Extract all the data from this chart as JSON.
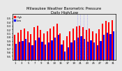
{
  "title": "Milwaukee Weather Barometric Pressure",
  "subtitle": "Daily High/Low",
  "background_color": "#e8e8e8",
  "plot_bg_color": "#e8e8e8",
  "high_color": "#ff0000",
  "low_color": "#0000ff",
  "dotted_line_color": "#8888ff",
  "num_bars": 31,
  "highs": [
    30.05,
    30.12,
    30.18,
    30.22,
    30.15,
    30.08,
    30.25,
    30.3,
    30.18,
    30.1,
    30.15,
    30.22,
    30.28,
    30.35,
    30.1,
    29.92,
    30.02,
    30.15,
    30.22,
    30.28,
    30.3,
    30.25,
    30.18,
    30.22,
    30.15,
    30.1,
    30.2,
    30.35,
    30.42,
    30.38,
    30.45
  ],
  "lows": [
    29.82,
    29.88,
    29.9,
    29.95,
    29.85,
    29.78,
    29.92,
    29.98,
    29.88,
    29.8,
    29.85,
    29.92,
    29.98,
    30.05,
    29.8,
    29.62,
    29.72,
    29.85,
    29.92,
    29.98,
    30.02,
    29.95,
    29.88,
    29.92,
    29.85,
    29.78,
    29.9,
    30.05,
    30.12,
    30.08,
    30.15
  ],
  "ylim_min": 29.4,
  "ylim_max": 30.6,
  "ytick_vals": [
    29.5,
    29.6,
    29.7,
    29.8,
    29.9,
    30.0,
    30.1,
    30.2,
    30.3,
    30.4,
    30.5
  ],
  "ytick_labels": [
    "9.5",
    "9.6",
    "9.7",
    "9.8",
    "9.9",
    "0.0",
    "0.1",
    "0.2",
    "0.3",
    "0.4",
    "0.5"
  ],
  "dotted_bars": [
    20,
    21,
    22,
    23
  ],
  "title_fontsize": 3.8,
  "tick_fontsize": 2.8,
  "legend_fontsize": 2.5
}
